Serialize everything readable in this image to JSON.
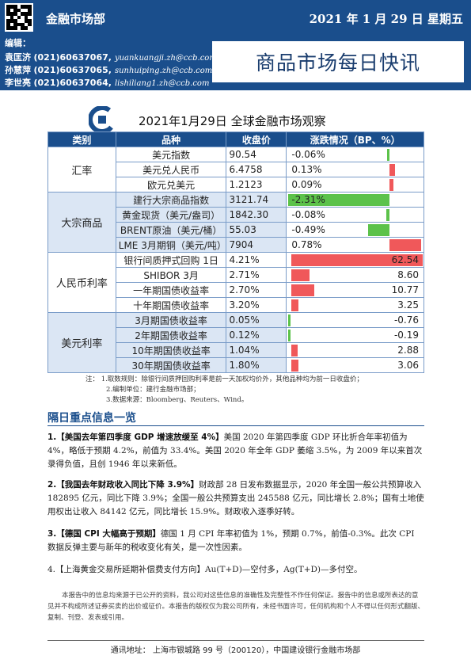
{
  "header": {
    "dept": "金融市场部",
    "date": "2021 年 1 月 29 日  星期五"
  },
  "editors": {
    "label": "编辑：",
    "list": [
      {
        "name": "袁匡济",
        "phone": "(021)60637067,",
        "email": "yuankuangji.zh@ccb.com"
      },
      {
        "name": "孙慧萍",
        "phone": "(021)60637065,",
        "email": "sunhuiping.zh@ccb.com"
      },
      {
        "name": "李世亮",
        "phone": "(021)60637064,",
        "email": "lishiliang1.zh@ccb.com"
      }
    ]
  },
  "report_title": "商品市场每日快讯",
  "table_title": "2021年1月29日  全球金融市场观察",
  "table": {
    "headers": [
      "类别",
      "品种",
      "收盘价",
      "涨跌情况（BP、%）"
    ],
    "groups": [
      {
        "category": "汇率",
        "rows": [
          {
            "name": "美元指数",
            "close": "90.54",
            "change": "-0.06%",
            "value": -0.06
          },
          {
            "name": "美元兑人民币",
            "close": "6.4758",
            "change": "0.13%",
            "value": 0.13
          },
          {
            "name": "欧元兑美元",
            "close": "1.2123",
            "change": "0.09%",
            "value": 0.09
          }
        ]
      },
      {
        "category": "大宗商品",
        "rows": [
          {
            "name": "建行大宗商品指数",
            "close": "3121.74",
            "change": "-2.31%",
            "value": -2.31
          },
          {
            "name": "黄金现货（美元/盎司）",
            "close": "1842.30",
            "change": "-0.08%",
            "value": -0.08
          },
          {
            "name": "BRENT原油（美元/桶）",
            "close": "55.03",
            "change": "-0.49%",
            "value": -0.49
          },
          {
            "name": "LME 3月期铜（美元/吨）",
            "close": "7904",
            "change": "0.78%",
            "value": 0.78
          }
        ]
      },
      {
        "category": "人民币利率",
        "rows": [
          {
            "name": "银行间质押式回购 1日",
            "close": "4.21%",
            "change": "62.54",
            "value": 62.54
          },
          {
            "name": "SHIBOR 3月",
            "close": "2.71%",
            "change": "8.60",
            "value": 8.6
          },
          {
            "name": "一年期国债收益率",
            "close": "2.70%",
            "change": "10.77",
            "value": 10.77
          },
          {
            "name": "十年期国债收益率",
            "close": "3.20%",
            "change": "3.25",
            "value": 3.25
          }
        ]
      },
      {
        "category": "美元利率",
        "rows": [
          {
            "name": "3月期国债收益率",
            "close": "0.05%",
            "change": "-0.76",
            "value": -0.76
          },
          {
            "name": "2年期国债收益率",
            "close": "0.12%",
            "change": "-0.19",
            "value": -0.19
          },
          {
            "name": "10年期国债收益率",
            "close": "1.04%",
            "change": "2.88",
            "value": 2.88
          },
          {
            "name": "30年期国债收益率",
            "close": "1.80%",
            "change": "3.06",
            "value": 3.06
          }
        ]
      }
    ]
  },
  "notes": [
    "注：  1.取数规则：除银行间质押回购利率是前一天加权均价外，其他品种均为前一日收盘价；",
    "2.编制单位：建行金融市场部；",
    "3.数据来源：Bloomberg、Reuters、Wind。"
  ],
  "news_title": "隔日重点信息一览",
  "news": [
    {
      "head": "1.【美国去年第四季度 GDP 增速放缓至 4%】",
      "body": "美国 2020 年第四季度 GDP 环比折合年率初值为 4%，略低于预期 4.2%，前值为 33.4%。美国 2020 年全年 GDP 萎缩 3.5%，为 2009 年以来首次录得负值，且创 1946 年以来新低。"
    },
    {
      "head": "2.【我国去年财政收入同比下降 3.9%】",
      "body": "财政部 28 日发布数据显示，2020 年全国一般公共预算收入 182895 亿元，同比下降 3.9%；全国一般公共预算支出 245588 亿元，同比增长 2.8%；国有土地使用权出让收入 84142 亿元，同比增长 15.9%。财政收入逐季好转。"
    },
    {
      "head": "3.【德国 CPI 大幅高于预期】",
      "body": "德国 1 月 CPI 年率初值为 1%，预期 0.7%，前值-0.3%。此次 CPI 数据反弹主要与新年的税收变化有关，是一次性因素。"
    },
    {
      "head": "4.【上海黄金交易所延期补偿费支付方向】",
      "body": "Au(T+D)—空付多，Ag(T+D)—多付空。"
    }
  ],
  "disclaimer": "本报告中的信息均来源于已公开的资料，我公司对这些信息的准确性及完整性不作任何保证。报告中的信息或所表达的意见并不构成所述证券买卖的出价或征价。本报告的版权仅为我公司所有，未经书面许可，任何机构和个人不得以任何形式翻版、复制、刊登、发表或引用。",
  "footer": "通讯地址：  上海市银城路 99 号（200120），中国建设银行金融市场部",
  "colors": {
    "brand": "#1a4e8c",
    "positive": "#f0585a",
    "negative": "#5cc24a"
  }
}
